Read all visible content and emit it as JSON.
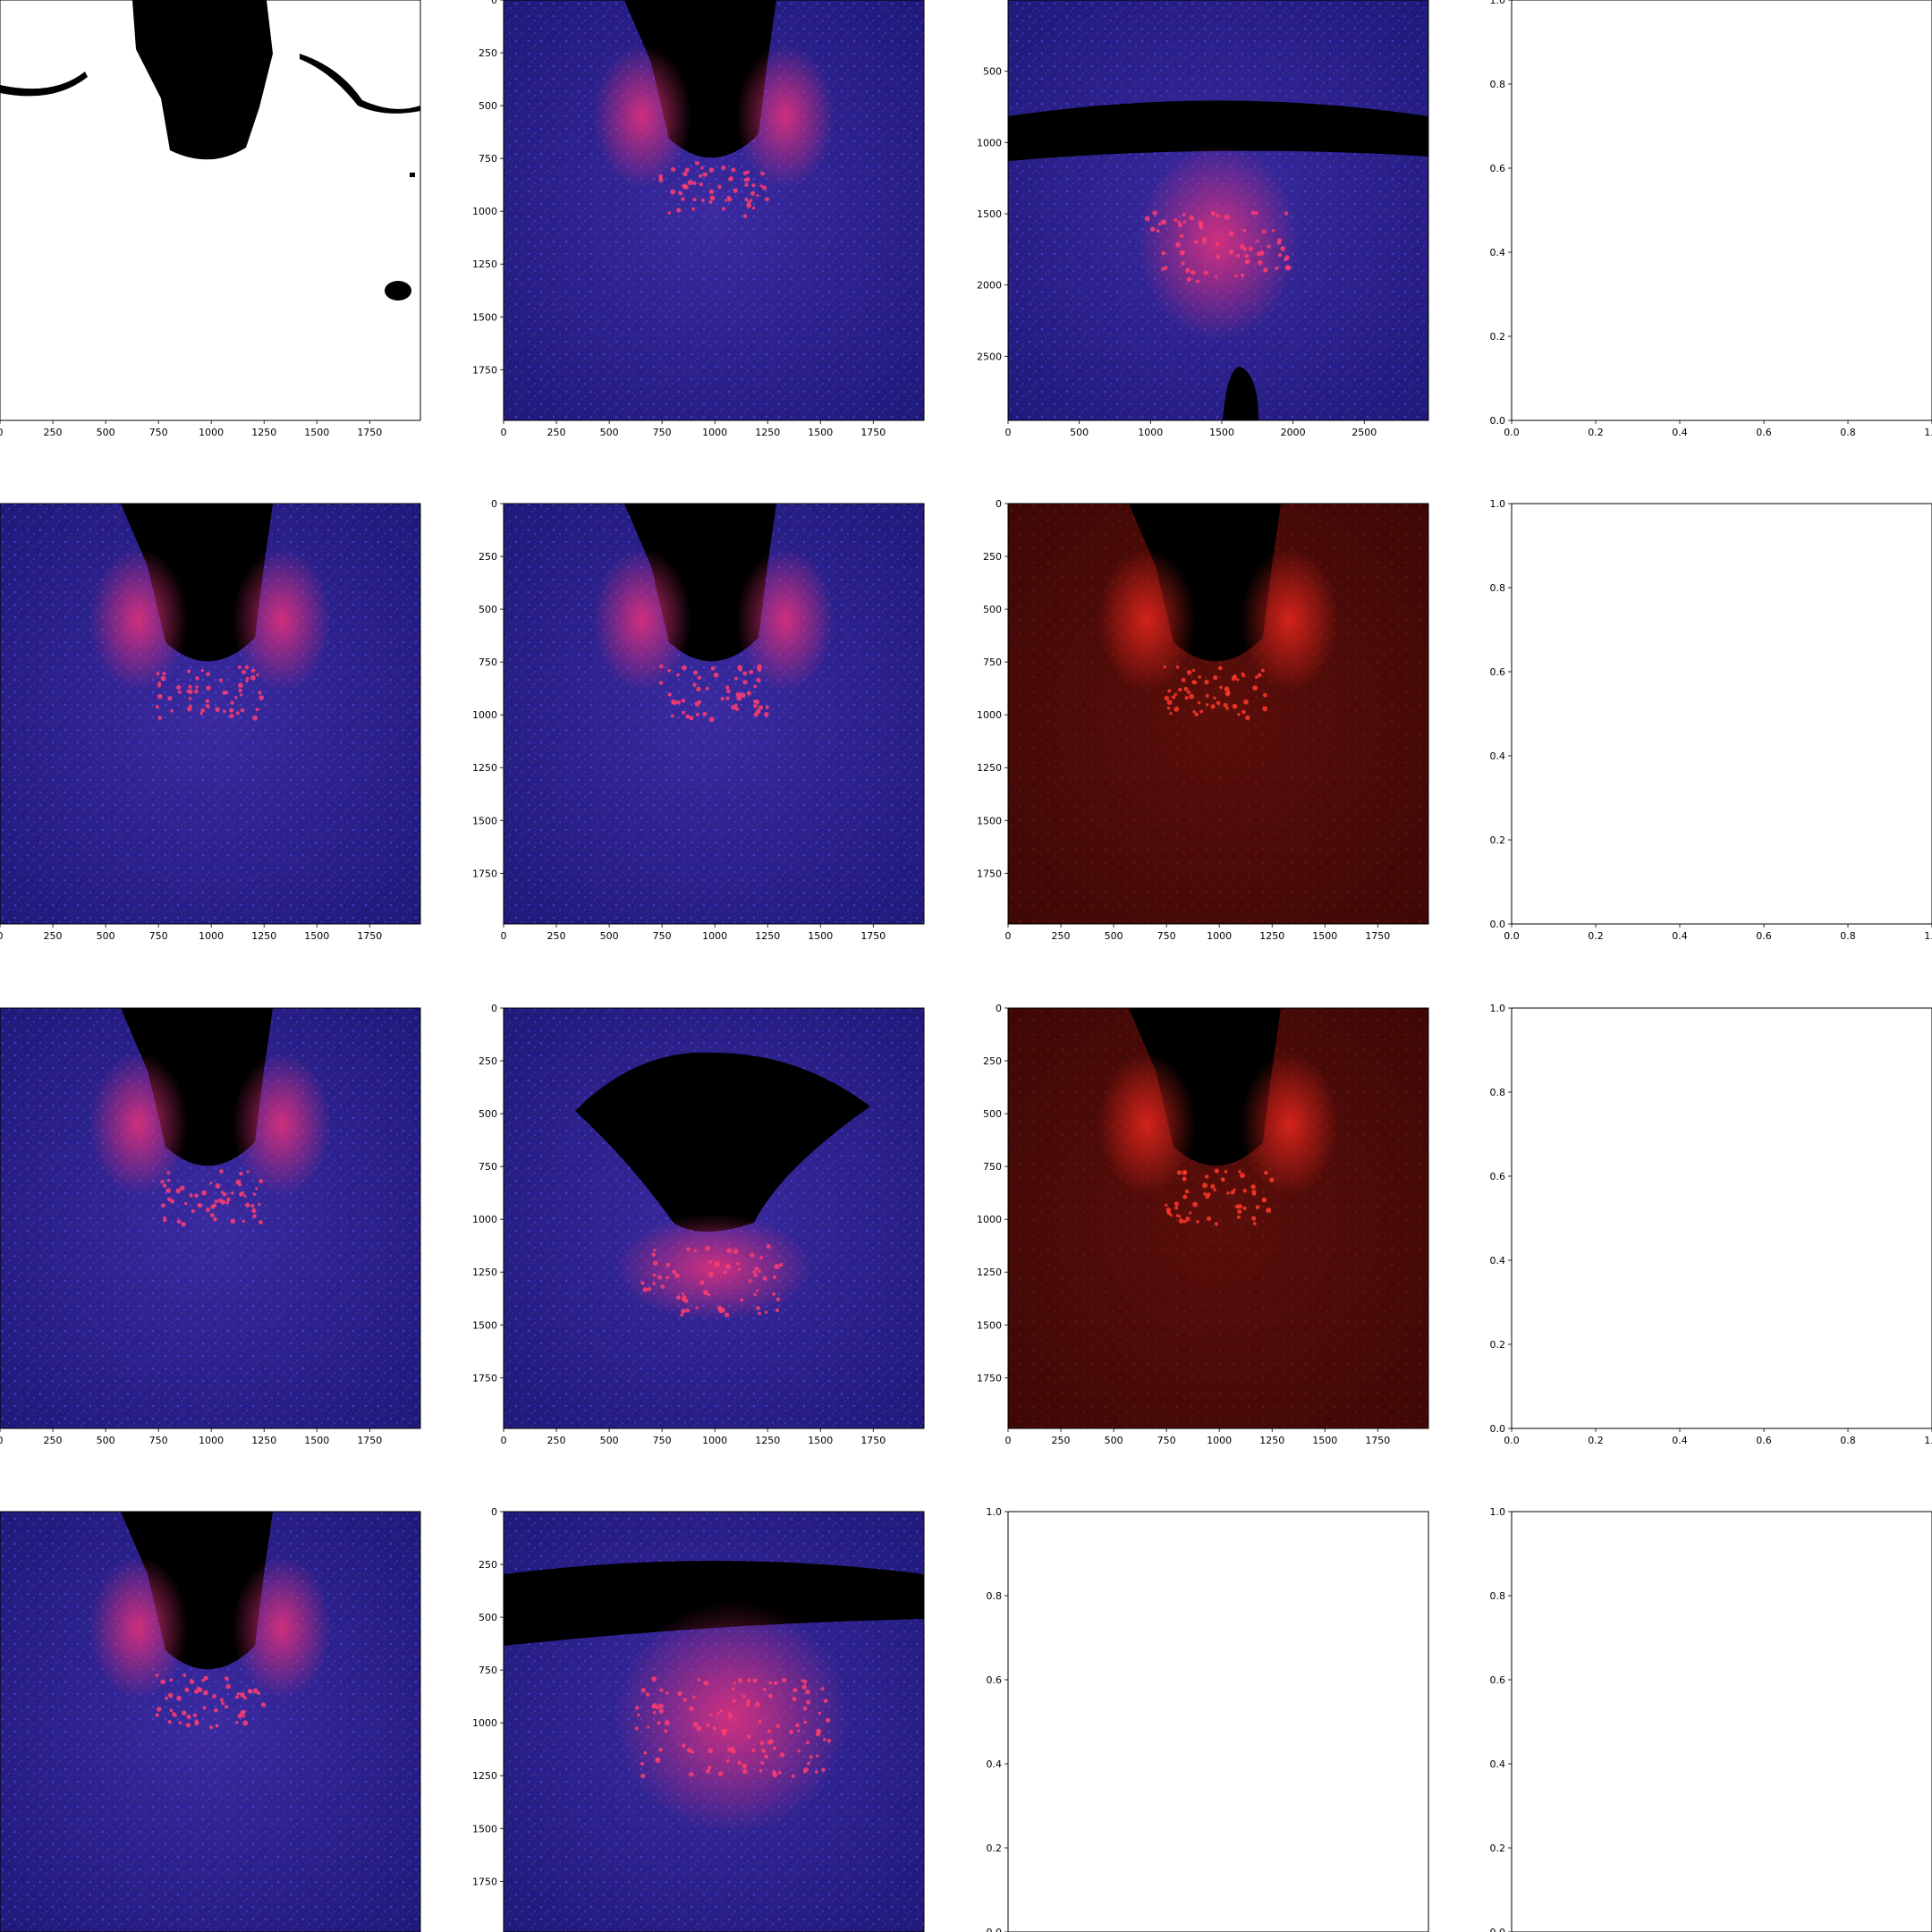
{
  "figure": {
    "rows": 4,
    "cols": 4
  },
  "chart_data": [
    {
      "panel": "r1c1",
      "type": "image",
      "image_style": "binary-mask-white-black",
      "xticks": [
        0,
        250,
        500,
        750,
        1000,
        1250,
        1500,
        1750
      ],
      "yticks": [],
      "xlim": [
        0,
        1990
      ],
      "ylim": [
        0,
        1990
      ]
    },
    {
      "panel": "r1c2",
      "type": "image",
      "image_style": "fluorescence-blue-red",
      "xticks": [
        0,
        250,
        500,
        750,
        1000,
        1250,
        1500,
        1750
      ],
      "yticks": [
        0,
        250,
        500,
        750,
        1000,
        1250,
        1500,
        1750
      ],
      "xlim": [
        0,
        1990
      ],
      "ylim": [
        0,
        1990
      ]
    },
    {
      "panel": "r1c3",
      "type": "image",
      "image_style": "fluorescence-blue-red",
      "xticks": [
        0,
        500,
        1000,
        1500,
        2000,
        2500
      ],
      "yticks": [
        500,
        1000,
        1500,
        2000,
        2500
      ],
      "xlim": [
        0,
        2950
      ],
      "ylim": [
        0,
        2950
      ]
    },
    {
      "panel": "r1c4",
      "type": "empty-axes",
      "xticks": [
        "0.0",
        "0.2",
        "0.4",
        "0.6",
        "0.8",
        "1.0"
      ],
      "yticks": [
        "0.0",
        "0.2",
        "0.4",
        "0.6",
        "0.8",
        "1.0"
      ],
      "xlim": [
        0,
        1
      ],
      "ylim": [
        0,
        1
      ]
    },
    {
      "panel": "r2c1",
      "type": "image",
      "image_style": "fluorescence-blue-red",
      "xticks": [
        0,
        250,
        500,
        750,
        1000,
        1250,
        1500,
        1750
      ],
      "yticks": [],
      "xlim": [
        0,
        1990
      ],
      "ylim": [
        0,
        1990
      ]
    },
    {
      "panel": "r2c2",
      "type": "image",
      "image_style": "fluorescence-blue-red",
      "xticks": [
        0,
        250,
        500,
        750,
        1000,
        1250,
        1500,
        1750
      ],
      "yticks": [
        0,
        250,
        500,
        750,
        1000,
        1250,
        1500,
        1750
      ],
      "xlim": [
        0,
        1990
      ],
      "ylim": [
        0,
        1990
      ]
    },
    {
      "panel": "r2c3",
      "type": "image",
      "image_style": "fluorescence-red-only",
      "xticks": [
        0,
        250,
        500,
        750,
        1000,
        1250,
        1500,
        1750
      ],
      "yticks": [
        0,
        250,
        500,
        750,
        1000,
        1250,
        1500,
        1750
      ],
      "xlim": [
        0,
        1990
      ],
      "ylim": [
        0,
        1990
      ]
    },
    {
      "panel": "r2c4",
      "type": "empty-axes",
      "xticks": [
        "0.0",
        "0.2",
        "0.4",
        "0.6",
        "0.8",
        "1.0"
      ],
      "yticks": [
        "0.0",
        "0.2",
        "0.4",
        "0.6",
        "0.8",
        "1.0"
      ],
      "xlim": [
        0,
        1
      ],
      "ylim": [
        0,
        1
      ]
    },
    {
      "panel": "r3c1",
      "type": "image",
      "image_style": "fluorescence-blue-red",
      "xticks": [
        0,
        250,
        500,
        750,
        1000,
        1250,
        1500,
        1750
      ],
      "yticks": [],
      "xlim": [
        0,
        1990
      ],
      "ylim": [
        0,
        1990
      ]
    },
    {
      "panel": "r3c2",
      "type": "image",
      "image_style": "fluorescence-blue-red",
      "xticks": [
        0,
        250,
        500,
        750,
        1000,
        1250,
        1500,
        1750
      ],
      "yticks": [
        0,
        250,
        500,
        750,
        1000,
        1250,
        1500,
        1750
      ],
      "xlim": [
        0,
        1990
      ],
      "ylim": [
        0,
        1990
      ]
    },
    {
      "panel": "r3c3",
      "type": "image",
      "image_style": "fluorescence-red-only",
      "xticks": [
        0,
        250,
        500,
        750,
        1000,
        1250,
        1500,
        1750
      ],
      "yticks": [
        0,
        250,
        500,
        750,
        1000,
        1250,
        1500,
        1750
      ],
      "xlim": [
        0,
        1990
      ],
      "ylim": [
        0,
        1990
      ]
    },
    {
      "panel": "r3c4",
      "type": "empty-axes",
      "xticks": [
        "0.0",
        "0.2",
        "0.4",
        "0.6",
        "0.8",
        "1.0"
      ],
      "yticks": [
        "0.0",
        "0.2",
        "0.4",
        "0.6",
        "0.8",
        "1.0"
      ],
      "xlim": [
        0,
        1
      ],
      "ylim": [
        0,
        1
      ]
    },
    {
      "panel": "r4c1",
      "type": "image",
      "image_style": "fluorescence-blue-red",
      "xticks": [],
      "yticks": [],
      "xlim": [
        0,
        1990
      ],
      "ylim": [
        0,
        1990
      ]
    },
    {
      "panel": "r4c2",
      "type": "image",
      "image_style": "fluorescence-blue-red",
      "xticks": [],
      "yticks": [
        0,
        250,
        500,
        750,
        1000,
        1250,
        1500,
        1750
      ],
      "xlim": [
        0,
        1990
      ],
      "ylim": [
        0,
        1990
      ]
    },
    {
      "panel": "r4c3",
      "type": "empty-axes",
      "xticks": [],
      "yticks": [
        "0.0",
        "0.2",
        "0.4",
        "0.6",
        "0.8",
        "1.0"
      ],
      "xlim": [
        0,
        1
      ],
      "ylim": [
        0,
        1
      ]
    },
    {
      "panel": "r4c4",
      "type": "empty-axes",
      "xticks": [],
      "yticks": [
        "0.0",
        "0.2",
        "0.4",
        "0.6",
        "0.8",
        "1.0"
      ],
      "xlim": [
        0,
        1
      ],
      "ylim": [
        0,
        1
      ]
    }
  ]
}
